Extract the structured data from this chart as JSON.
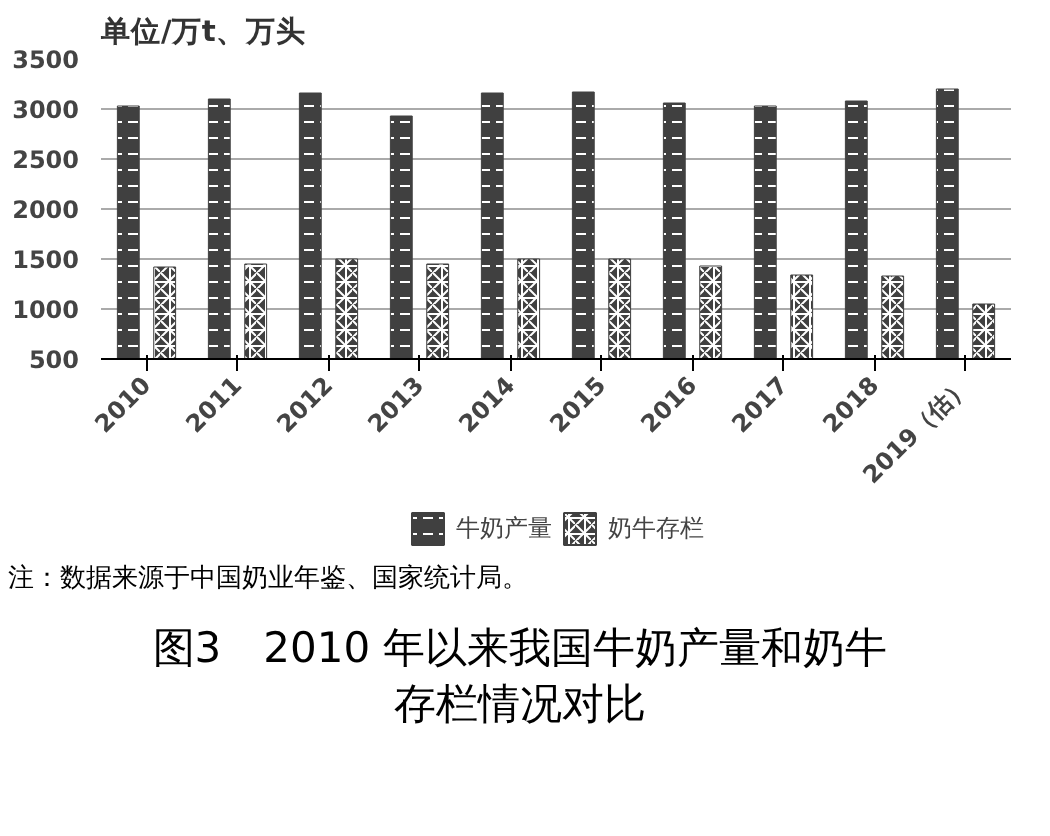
{
  "chart_data": {
    "type": "bar",
    "title": "图3　2010 年以来我国牛奶产量和奶牛存栏情况对比",
    "ylabel": "单位/万t、万头",
    "categories": [
      "2010",
      "2011",
      "2012",
      "2013",
      "2014",
      "2015",
      "2016",
      "2017",
      "2018",
      "2019（估）"
    ],
    "series": [
      {
        "name": "牛奶产量",
        "color": "#404040",
        "values": [
          3030,
          3100,
          3160,
          2930,
          3160,
          3170,
          3060,
          3030,
          3080,
          3200
        ]
      },
      {
        "name": "奶牛存栏",
        "color": "#404040",
        "values": [
          1420,
          1450,
          1500,
          1450,
          1500,
          1500,
          1430,
          1340,
          1330,
          1050
        ]
      }
    ],
    "ylim": [
      500,
      3500
    ],
    "yticks": [
      500,
      1000,
      1500,
      2000,
      2500,
      3000,
      3500
    ],
    "grid": "y",
    "legend": "bottom",
    "annotations": [
      "注：数据来源于中国奶业年鉴、国家统计局。"
    ]
  }
}
